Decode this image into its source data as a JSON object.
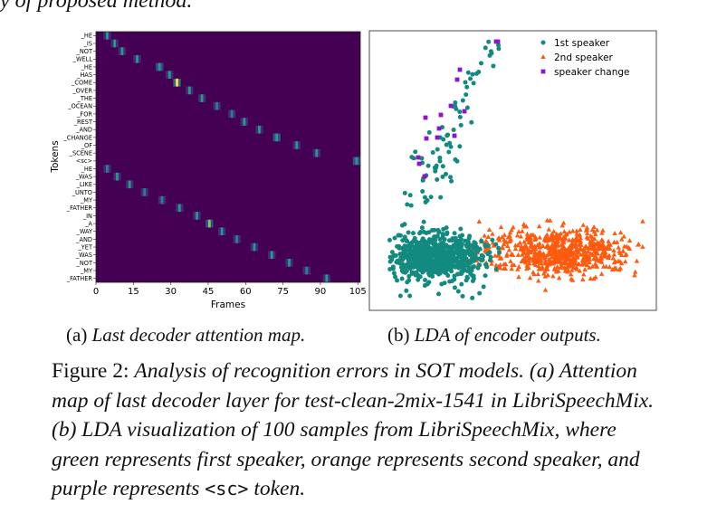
{
  "header_fragment": "y of proposed method.",
  "subcaptions": {
    "a_label": "(a)",
    "a_text": "Last decoder attention map.",
    "b_label": "(b)",
    "b_text": "LDA of encoder outputs."
  },
  "caption": {
    "label": "Figure 2:",
    "part1": "Analysis of recognition errors in SOT models. (a) Attention map of last decoder layer for test-clean-2mix-1541 in LibriSpeechMix. (b) LDA visualization of 100 samples from LibriSpeechMix, where green represents first speaker, orange represents second speaker, and purple represents ",
    "sc_token": "<sc>",
    "part2": " token."
  },
  "colors": {
    "heatmap_bg": "#440154",
    "first_speaker": "#138a80",
    "second_speaker": "#ff5a0d",
    "speaker_change": "#8e13c9"
  },
  "chart_data": [
    {
      "type": "heatmap",
      "xlabel": "Frames",
      "ylabel": "Tokens",
      "xticks": [
        0,
        15,
        30,
        45,
        60,
        75,
        90,
        105
      ],
      "xlim": [
        0,
        106
      ],
      "colormap": "viridis",
      "tokens": [
        "_HE",
        "_IS",
        "_NOT",
        "_WELL",
        "_HE",
        "_HAS",
        "_COME",
        "_OVER",
        "_THE",
        "_OCEAN",
        "_FOR",
        "_REST",
        "_AND",
        "_CHANGE",
        "_OF",
        "_SCENE",
        "<sc>",
        "_HE",
        "_WAS",
        "_LIKE",
        "_UNTO",
        "_MY",
        "_FATHER",
        "_IN",
        "_A",
        "_WAY",
        "_AND",
        "_YET",
        "_WAS",
        "_NOT",
        "_MY",
        "_FATHER"
      ],
      "peaks": [
        {
          "token": 0,
          "frame": 4,
          "value": 0.5
        },
        {
          "token": 1,
          "frame": 7,
          "value": 0.5
        },
        {
          "token": 2,
          "frame": 10,
          "value": 0.55
        },
        {
          "token": 3,
          "frame": 16,
          "value": 0.5
        },
        {
          "token": 4,
          "frame": 25,
          "value": 0.6
        },
        {
          "token": 5,
          "frame": 29,
          "value": 0.55
        },
        {
          "token": 6,
          "frame": 32,
          "value": 0.95
        },
        {
          "token": 7,
          "frame": 37,
          "value": 0.5
        },
        {
          "token": 8,
          "frame": 42,
          "value": 0.5
        },
        {
          "token": 9,
          "frame": 48,
          "value": 0.45
        },
        {
          "token": 10,
          "frame": 54,
          "value": 0.45
        },
        {
          "token": 11,
          "frame": 59,
          "value": 0.5
        },
        {
          "token": 12,
          "frame": 65,
          "value": 0.5
        },
        {
          "token": 13,
          "frame": 72,
          "value": 0.6
        },
        {
          "token": 14,
          "frame": 80,
          "value": 0.55
        },
        {
          "token": 15,
          "frame": 88,
          "value": 0.5
        },
        {
          "token": 16,
          "frame": 104,
          "value": 0.6
        },
        {
          "token": 17,
          "frame": 4,
          "value": 0.45
        },
        {
          "token": 18,
          "frame": 8,
          "value": 0.5
        },
        {
          "token": 19,
          "frame": 13,
          "value": 0.5
        },
        {
          "token": 20,
          "frame": 19,
          "value": 0.45
        },
        {
          "token": 21,
          "frame": 26,
          "value": 0.45
        },
        {
          "token": 22,
          "frame": 33,
          "value": 0.55
        },
        {
          "token": 23,
          "frame": 40,
          "value": 0.55
        },
        {
          "token": 24,
          "frame": 45,
          "value": 0.75
        },
        {
          "token": 25,
          "frame": 50,
          "value": 0.5
        },
        {
          "token": 26,
          "frame": 56,
          "value": 0.45
        },
        {
          "token": 27,
          "frame": 63,
          "value": 0.55
        },
        {
          "token": 28,
          "frame": 70,
          "value": 0.5
        },
        {
          "token": 29,
          "frame": 77,
          "value": 0.5
        },
        {
          "token": 30,
          "frame": 84,
          "value": 0.45
        },
        {
          "token": 31,
          "frame": 92,
          "value": 0.5
        }
      ]
    },
    {
      "type": "scatter",
      "legend_position": "top-right",
      "axes_ticks_labeled": false,
      "series": [
        {
          "name": "1st speaker",
          "marker": "circle"
        },
        {
          "name": "2nd speaker",
          "marker": "triangle"
        },
        {
          "name": "speaker change",
          "marker": "square"
        }
      ]
    }
  ]
}
